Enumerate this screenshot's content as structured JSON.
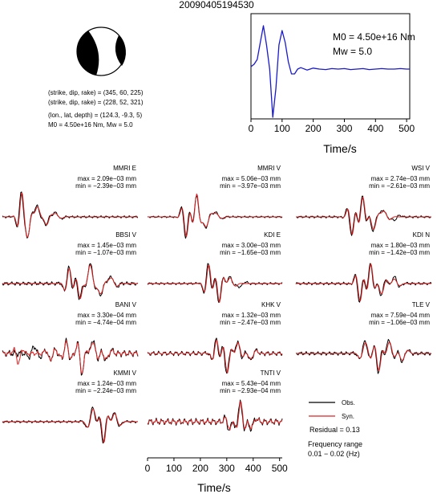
{
  "title": "20090405194530",
  "colors": {
    "obs": "#000000",
    "syn": "#e02020",
    "stf": "#1a1acc"
  },
  "beachball": {
    "lines": [
      "(strike, dip, rake) = (345, 60, 225)",
      "(strike, dip, rake) = (228, 52, 321)",
      "(lon., lat, depth) = (124.3, -9.3, 5)",
      "M0 = 4.50e+16 Nm, Mw = 5.0"
    ]
  },
  "stf": {
    "m0_text": "M0 = 4.50e+16 Nm",
    "mw_text": "Mw = 5.0",
    "xlabel": "Time/s",
    "xticks": [
      0,
      100,
      200,
      300,
      400,
      500
    ]
  },
  "chart_data": [
    {
      "type": "line",
      "name": "source time function",
      "x_range": [
        0,
        510
      ],
      "x": [
        0,
        10,
        20,
        30,
        40,
        50,
        60,
        70,
        80,
        90,
        100,
        110,
        120,
        130,
        140,
        150,
        160,
        180,
        200,
        220,
        240,
        260,
        280,
        300,
        320,
        340,
        360,
        380,
        400,
        420,
        440,
        460,
        480,
        500,
        510
      ],
      "y": [
        0.05,
        0.1,
        0.2,
        0.55,
        0.9,
        0.5,
        0.0,
        -1.0,
        -0.4,
        0.5,
        0.8,
        0.55,
        0.15,
        -0.1,
        -0.1,
        0.0,
        0.03,
        -0.02,
        0.02,
        0.0,
        -0.01,
        0.01,
        0.0,
        0.01,
        -0.01,
        0.0,
        0.01,
        -0.01,
        0.0,
        0.01,
        0.0,
        0.0,
        0.01,
        0.0,
        0.0
      ]
    },
    {
      "type": "line",
      "name": "waveforms",
      "x_range": [
        0,
        510
      ],
      "xlabel": "Time/s",
      "xticks": [
        0,
        100,
        200,
        300,
        400,
        500
      ],
      "legend": {
        "obs": "Obs.",
        "syn": "Syn.",
        "placement": "bottom-right"
      },
      "residual": "Residual = 0.13",
      "freq_label": "Frequency range",
      "freq_value": "0.01 − 0.02 (Hz)",
      "stations": [
        {
          "name": "MMRI E",
          "max": "max = 2.09e−03 mm",
          "min": "min = −2.39e−03 mm",
          "obs": {
            "wavelets": [
              [
                70,
                18,
                0.9
              ],
              [
                95,
                20,
                -0.8
              ],
              [
                130,
                25,
                0.5
              ],
              [
                165,
                20,
                -0.3
              ],
              [
                200,
                25,
                0.2
              ]
            ],
            "noise": 0.05
          },
          "syn": {
            "wavelets": [
              [
                72,
                18,
                0.85
              ],
              [
                96,
                20,
                -0.75
              ],
              [
                132,
                25,
                0.45
              ],
              [
                167,
                20,
                -0.3
              ],
              [
                200,
                25,
                0.15
              ]
            ],
            "noise": 0.0
          }
        },
        {
          "name": "MMRI V",
          "max": "max = 5.06e−03 mm",
          "min": "min = −3.97e−03 mm",
          "obs": {
            "wavelets": [
              [
                145,
                20,
                -0.9
              ],
              [
                185,
                20,
                0.9
              ],
              [
                220,
                25,
                -0.5
              ],
              [
                260,
                25,
                0.2
              ]
            ],
            "noise": 0.04
          },
          "syn": {
            "wavelets": [
              [
                147,
                20,
                -0.85
              ],
              [
                186,
                20,
                0.95
              ],
              [
                221,
                25,
                -0.45
              ],
              [
                260,
                25,
                0.15
              ]
            ],
            "noise": 0.0
          }
        },
        {
          "name": "WSI V",
          "max": "max = 2.74e−03 mm",
          "min": "min = −2.61e−03 mm",
          "obs": {
            "wavelets": [
              [
                210,
                20,
                -0.8
              ],
              [
                250,
                20,
                0.9
              ],
              [
                290,
                25,
                -0.6
              ],
              [
                330,
                25,
                0.3
              ],
              [
                370,
                25,
                -0.15
              ]
            ],
            "noise": 0.05
          },
          "syn": {
            "wavelets": [
              [
                212,
                20,
                -0.75
              ],
              [
                252,
                20,
                0.85
              ],
              [
                292,
                25,
                -0.55
              ],
              [
                332,
                25,
                0.25
              ]
            ],
            "noise": 0.0
          }
        },
        {
          "name": "BBSI V",
          "max": "max = 1.45e−03 mm",
          "min": "min = −1.07e−03 mm",
          "obs": {
            "wavelets": [
              [
                250,
                20,
                0.7
              ],
              [
                290,
                20,
                -0.7
              ],
              [
                330,
                25,
                0.9
              ],
              [
                370,
                25,
                -0.5
              ],
              [
                410,
                25,
                0.3
              ]
            ],
            "noise": 0.08
          },
          "syn": {
            "wavelets": [
              [
                252,
                20,
                0.65
              ],
              [
                292,
                20,
                -0.65
              ],
              [
                330,
                25,
                0.8
              ],
              [
                370,
                25,
                -0.45
              ],
              [
                410,
                25,
                0.25
              ]
            ],
            "noise": 0.0
          }
        },
        {
          "name": "KDI E",
          "max": "max = 3.00e−03 mm",
          "min": "min = −1.65e−03 mm",
          "obs": {
            "wavelets": [
              [
                230,
                20,
                0.85
              ],
              [
                270,
                20,
                -0.85
              ],
              [
                310,
                25,
                0.3
              ],
              [
                350,
                25,
                -0.15
              ]
            ],
            "noise": 0.05
          },
          "syn": {
            "wavelets": [
              [
                232,
                20,
                0.8
              ],
              [
                272,
                20,
                -0.8
              ],
              [
                312,
                25,
                0.25
              ]
            ],
            "noise": 0.0
          }
        },
        {
          "name": "KDI N",
          "max": "max = 1.80e−03 mm",
          "min": "min = −1.42e−03 mm",
          "obs": {
            "wavelets": [
              [
                240,
                20,
                -0.8
              ],
              [
                280,
                20,
                0.9
              ],
              [
                320,
                25,
                -0.5
              ],
              [
                370,
                25,
                0.3
              ]
            ],
            "noise": 0.06
          },
          "syn": {
            "wavelets": [
              [
                242,
                20,
                -0.75
              ],
              [
                282,
                20,
                0.85
              ],
              [
                322,
                25,
                -0.45
              ],
              [
                370,
                25,
                0.2
              ]
            ],
            "noise": 0.0
          }
        },
        {
          "name": "BANI V",
          "max": "max = 3.30e−04 mm",
          "min": "min = −4.74e−04 mm",
          "obs": {
            "wavelets": [
              [
                120,
                25,
                0.3
              ],
              [
                180,
                20,
                -0.3
              ],
              [
                240,
                20,
                0.5
              ],
              [
                300,
                20,
                -0.9
              ],
              [
                340,
                25,
                0.6
              ],
              [
                390,
                25,
                -0.3
              ]
            ],
            "noise": 0.15
          },
          "syn": {
            "wavelets": [
              [
                60,
                20,
                -0.4
              ],
              [
                180,
                20,
                -0.3
              ],
              [
                240,
                20,
                0.45
              ],
              [
                300,
                20,
                -0.85
              ],
              [
                340,
                25,
                0.5
              ],
              [
                390,
                25,
                -0.25
              ]
            ],
            "noise": 0.1
          }
        },
        {
          "name": "KHK V",
          "max": "max = 1.32e−03 mm",
          "min": "min = −2.47e−03 mm",
          "obs": {
            "wavelets": [
              [
                260,
                20,
                0.6
              ],
              [
                300,
                20,
                -0.9
              ],
              [
                340,
                25,
                0.5
              ],
              [
                390,
                25,
                -0.3
              ]
            ],
            "noise": 0.1
          },
          "syn": {
            "wavelets": [
              [
                262,
                20,
                0.55
              ],
              [
                302,
                20,
                -0.85
              ],
              [
                342,
                25,
                0.45
              ],
              [
                390,
                25,
                -0.25
              ]
            ],
            "noise": 0.05
          }
        },
        {
          "name": "TLE V",
          "max": "max = 7.59e−04 mm",
          "min": "min = −1.06e−03 mm",
          "obs": {
            "wavelets": [
              [
                260,
                25,
                0.5
              ],
              [
                310,
                20,
                -0.8
              ],
              [
                350,
                25,
                0.6
              ],
              [
                400,
                25,
                -0.35
              ]
            ],
            "noise": 0.08
          },
          "syn": {
            "wavelets": [
              [
                262,
                25,
                0.45
              ],
              [
                312,
                20,
                -0.75
              ],
              [
                352,
                25,
                0.5
              ],
              [
                400,
                25,
                -0.3
              ]
            ],
            "noise": 0.0
          }
        },
        {
          "name": "KMMI V",
          "max": "max = 1.24e−03 mm",
          "min": "min = −2.24e−03 mm",
          "obs": {
            "wavelets": [
              [
                340,
                25,
                0.6
              ],
              [
                380,
                20,
                -0.95
              ],
              [
                420,
                25,
                0.4
              ]
            ],
            "noise": 0.05
          },
          "syn": {
            "wavelets": [
              [
                342,
                25,
                0.55
              ],
              [
                382,
                20,
                -0.9
              ],
              [
                422,
                25,
                0.35
              ]
            ],
            "noise": 0.0
          }
        },
        {
          "name": "TNTI V",
          "max": "max = 5.43e−04 mm",
          "min": "min = −2.93e−04 mm",
          "obs": {
            "wavelets": [
              [
                310,
                20,
                -0.4
              ],
              [
                350,
                20,
                0.9
              ],
              [
                390,
                25,
                -0.3
              ]
            ],
            "noise": 0.15
          },
          "syn": {
            "wavelets": [
              [
                312,
                20,
                -0.35
              ],
              [
                352,
                20,
                0.85
              ],
              [
                392,
                25,
                -0.25
              ]
            ],
            "noise": 0.1
          }
        }
      ]
    }
  ]
}
